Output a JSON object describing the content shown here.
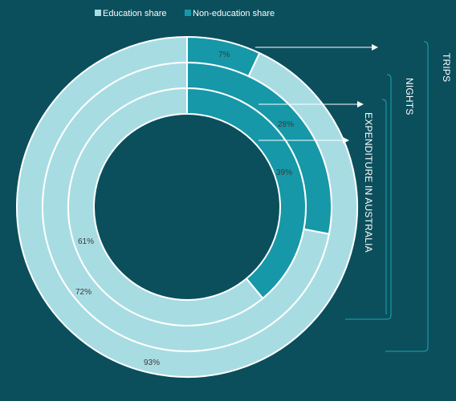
{
  "chart_data": {
    "type": "nested-donut",
    "legend": [
      {
        "label": "Education share",
        "color": "#a8dce3"
      },
      {
        "label": "Non-education share",
        "color": "#1698a8"
      }
    ],
    "rings": [
      {
        "name": "TRIPS",
        "education": 93,
        "non_education": 7,
        "education_label": "93%",
        "non_education_label": "7%"
      },
      {
        "name": "NIGHTS",
        "education": 72,
        "non_education": 28,
        "education_label": "72%",
        "non_education_label": "28%"
      },
      {
        "name": "EXPENDITURE IN AUSTRALIA",
        "education": 61,
        "non_education": 39,
        "education_label": "61%",
        "non_education_label": "39%"
      }
    ],
    "colors": {
      "background": "#0b4f5c",
      "education": "#a8dce3",
      "non_education": "#1698a8",
      "bracket": "#1fa3b5",
      "separator": "#ffffff"
    }
  }
}
